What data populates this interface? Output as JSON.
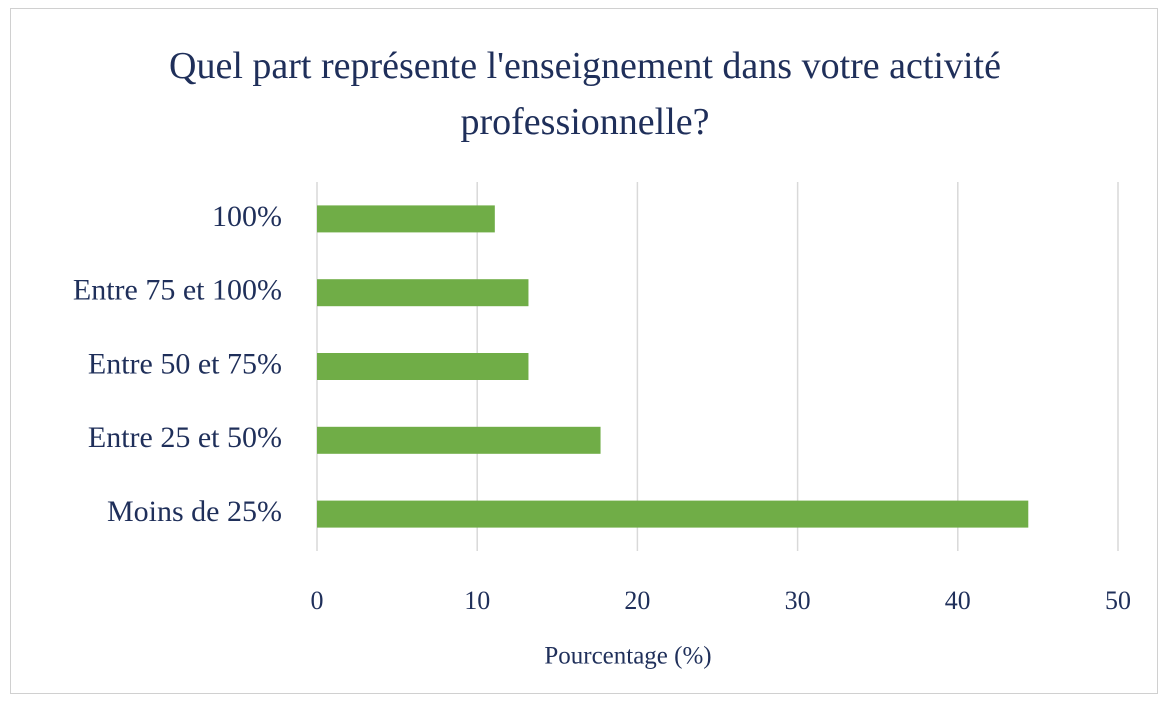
{
  "chart_data": {
    "type": "hbar",
    "title": "Quel part représente l'enseignement dans votre activité professionnelle?",
    "x_label": "Pourcentage (%)",
    "categories": [
      "100%",
      "Entre 75 et 100%",
      "Entre 50 et 75%",
      "Entre 25 et 50%",
      "Moins de 25%"
    ],
    "values": [
      11.1,
      13.2,
      13.2,
      17.7,
      44.4
    ],
    "color": "#70ad47",
    "xlim": [
      0,
      50
    ],
    "xticks": [
      0,
      10,
      20,
      30,
      40,
      50
    ],
    "grid": true
  }
}
